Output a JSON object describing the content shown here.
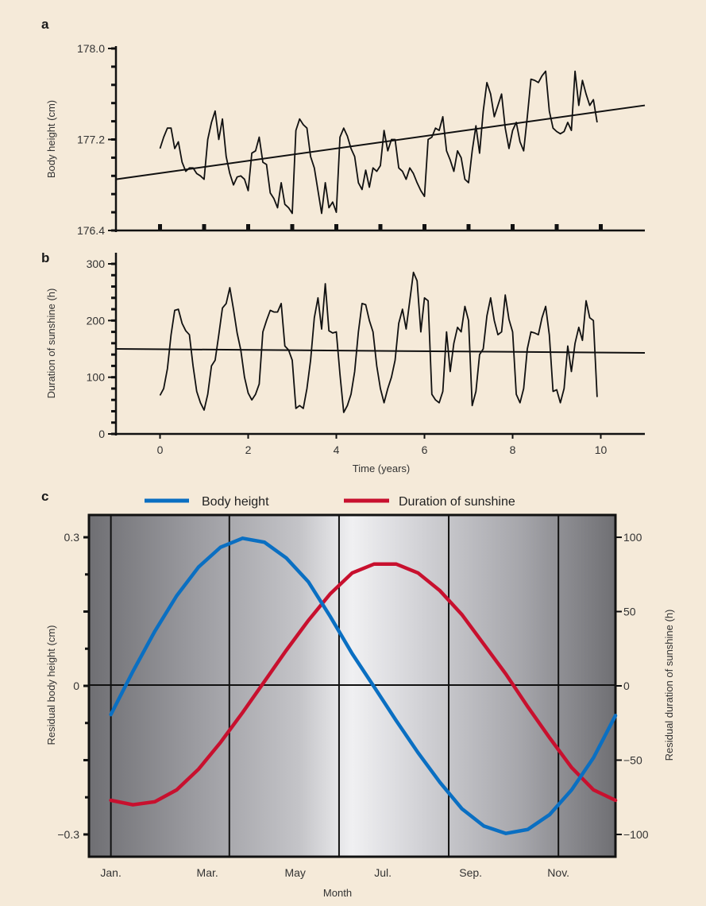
{
  "colors": {
    "background": "#f5ead9",
    "line": "#111111",
    "body_height": "#0a6fc2",
    "sunshine": "#c8102e"
  },
  "chart_data": [
    {
      "panel": "a",
      "type": "line",
      "ylabel": "Body height (cm)",
      "ylim": [
        176.4,
        178.0
      ],
      "xlim": [
        -1,
        11
      ],
      "y_tick_labels": [
        "178.0",
        "177.2",
        "176.4"
      ],
      "y_ticks": [
        178.0,
        177.2,
        176.4
      ],
      "x_ticks": [
        0,
        1,
        2,
        3,
        4,
        5,
        6,
        7,
        8,
        9,
        10
      ],
      "trend": {
        "x": [
          -1,
          11
        ],
        "y": [
          176.85,
          177.5
        ]
      },
      "series": [
        {
          "x": [
            0.0,
            0.083,
            0.167,
            0.25,
            0.333,
            0.417,
            0.5,
            0.583,
            0.667,
            0.75,
            0.833,
            0.917,
            1.0,
            1.083,
            1.167,
            1.25,
            1.333,
            1.417,
            1.5,
            1.583,
            1.667,
            1.75,
            1.833,
            1.917,
            2.0,
            2.083,
            2.167,
            2.25,
            2.333,
            2.417,
            2.5,
            2.583,
            2.667,
            2.75,
            2.833,
            2.917,
            3.0,
            3.083,
            3.167,
            3.25,
            3.333,
            3.417,
            3.5,
            3.583,
            3.667,
            3.75,
            3.833,
            3.917,
            4.0,
            4.083,
            4.167,
            4.25,
            4.333,
            4.417,
            4.5,
            4.583,
            4.667,
            4.75,
            4.833,
            4.917,
            5.0,
            5.083,
            5.167,
            5.25,
            5.333,
            5.417,
            5.5,
            5.583,
            5.667,
            5.75,
            5.833,
            5.917,
            6.0,
            6.083,
            6.167,
            6.25,
            6.333,
            6.417,
            6.5,
            6.583,
            6.667,
            6.75,
            6.833,
            6.917,
            7.0,
            7.083,
            7.167,
            7.25,
            7.333,
            7.417,
            7.5,
            7.583,
            7.667,
            7.75,
            7.833,
            7.917,
            8.0,
            8.083,
            8.167,
            8.25,
            8.333,
            8.417,
            8.5,
            8.583,
            8.667,
            8.75,
            8.833,
            8.917,
            9.0,
            9.083,
            9.167,
            9.25,
            9.333,
            9.417,
            9.5,
            9.583,
            9.667,
            9.75,
            9.833,
            9.917
          ],
          "y": [
            177.12,
            177.22,
            177.3,
            177.3,
            177.12,
            177.18,
            177.0,
            176.92,
            176.95,
            176.95,
            176.9,
            176.88,
            176.85,
            177.2,
            177.35,
            177.45,
            177.2,
            177.38,
            177.05,
            176.9,
            176.8,
            176.87,
            176.88,
            176.85,
            176.75,
            177.08,
            177.1,
            177.22,
            177.0,
            176.98,
            176.73,
            176.68,
            176.6,
            176.82,
            176.63,
            176.6,
            176.55,
            177.28,
            177.38,
            177.33,
            177.3,
            177.05,
            176.95,
            176.75,
            176.55,
            176.82,
            176.6,
            176.65,
            176.56,
            177.22,
            177.3,
            177.23,
            177.12,
            177.05,
            176.82,
            176.76,
            176.93,
            176.78,
            176.95,
            176.92,
            176.97,
            177.28,
            177.1,
            177.2,
            177.2,
            176.95,
            176.92,
            176.85,
            176.95,
            176.9,
            176.82,
            176.75,
            176.7,
            177.2,
            177.22,
            177.3,
            177.28,
            177.4,
            177.1,
            177.02,
            176.92,
            177.1,
            177.04,
            176.85,
            176.82,
            177.1,
            177.32,
            177.08,
            177.45,
            177.7,
            177.6,
            177.4,
            177.5,
            177.6,
            177.3,
            177.12,
            177.28,
            177.35,
            177.18,
            177.1,
            177.4,
            177.73,
            177.72,
            177.7,
            177.76,
            177.8,
            177.45,
            177.3,
            177.27,
            177.25,
            177.27,
            177.35,
            177.28,
            177.8,
            177.5,
            177.72,
            177.6,
            177.5,
            177.55,
            177.35
          ]
        }
      ]
    },
    {
      "panel": "b",
      "type": "line",
      "xlabel": "Time (years)",
      "ylabel": "Duration of sunshine (h)",
      "ylim": [
        0,
        300
      ],
      "xlim": [
        -1,
        11
      ],
      "y_tick_labels": [
        "300",
        "200",
        "100",
        "0"
      ],
      "y_ticks": [
        300,
        200,
        100,
        0
      ],
      "x_tick_labels": [
        "0",
        "2",
        "4",
        "6",
        "8",
        "10"
      ],
      "x_ticks": [
        0,
        2,
        4,
        6,
        8,
        10
      ],
      "trend": {
        "x": [
          -1,
          11
        ],
        "y": [
          150,
          143
        ]
      },
      "series": [
        {
          "x": [
            0.0,
            0.083,
            0.167,
            0.25,
            0.333,
            0.417,
            0.5,
            0.583,
            0.667,
            0.75,
            0.833,
            0.917,
            1.0,
            1.083,
            1.167,
            1.25,
            1.333,
            1.417,
            1.5,
            1.583,
            1.667,
            1.75,
            1.833,
            1.917,
            2.0,
            2.083,
            2.167,
            2.25,
            2.333,
            2.417,
            2.5,
            2.583,
            2.667,
            2.75,
            2.833,
            2.917,
            3.0,
            3.083,
            3.167,
            3.25,
            3.333,
            3.417,
            3.5,
            3.583,
            3.667,
            3.75,
            3.833,
            3.917,
            4.0,
            4.083,
            4.167,
            4.25,
            4.333,
            4.417,
            4.5,
            4.583,
            4.667,
            4.75,
            4.833,
            4.917,
            5.0,
            5.083,
            5.167,
            5.25,
            5.333,
            5.417,
            5.5,
            5.583,
            5.667,
            5.75,
            5.833,
            5.917,
            6.0,
            6.083,
            6.167,
            6.25,
            6.333,
            6.417,
            6.5,
            6.583,
            6.667,
            6.75,
            6.833,
            6.917,
            7.0,
            7.083,
            7.167,
            7.25,
            7.333,
            7.417,
            7.5,
            7.583,
            7.667,
            7.75,
            7.833,
            7.917,
            8.0,
            8.083,
            8.167,
            8.25,
            8.333,
            8.417,
            8.5,
            8.583,
            8.667,
            8.75,
            8.833,
            8.917,
            9.0,
            9.083,
            9.167,
            9.25,
            9.333,
            9.417,
            9.5,
            9.583,
            9.667,
            9.75,
            9.833,
            9.917
          ],
          "y": [
            68,
            80,
            115,
            175,
            218,
            220,
            195,
            182,
            175,
            120,
            75,
            55,
            42,
            70,
            120,
            130,
            175,
            222,
            230,
            258,
            220,
            178,
            148,
            100,
            72,
            60,
            70,
            88,
            180,
            200,
            218,
            215,
            215,
            230,
            155,
            148,
            130,
            45,
            50,
            45,
            80,
            130,
            205,
            240,
            185,
            265,
            182,
            178,
            180,
            105,
            38,
            50,
            70,
            110,
            180,
            230,
            228,
            200,
            180,
            120,
            80,
            55,
            80,
            100,
            130,
            195,
            220,
            185,
            235,
            285,
            270,
            180,
            240,
            235,
            70,
            60,
            55,
            75,
            180,
            110,
            160,
            188,
            180,
            225,
            200,
            50,
            75,
            140,
            150,
            208,
            240,
            200,
            175,
            180,
            245,
            202,
            180,
            70,
            55,
            80,
            150,
            180,
            178,
            175,
            205,
            225,
            175,
            75,
            78,
            55,
            80,
            155,
            110,
            160,
            188,
            165,
            235,
            205,
            200,
            65
          ]
        }
      ]
    },
    {
      "panel": "c",
      "type": "line",
      "xlabel": "Month",
      "ylabel": "Residual body height (cm)",
      "y2label": "Residual duration of sunshine (h)",
      "month_labels": [
        "Jan.",
        "Mar.",
        "May",
        "Jul.",
        "Sep.",
        "Nov."
      ],
      "ylim": [
        -0.345,
        0.345
      ],
      "y_tick_labels": [
        "0.3",
        "0",
        "−0.3"
      ],
      "y_ticks": [
        0.3,
        0,
        -0.3
      ],
      "y2lim": [
        -115,
        115
      ],
      "y2_tick_labels": [
        "100",
        "50",
        "0",
        "−50",
        "−100"
      ],
      "y2_ticks": [
        100,
        50,
        0,
        -50,
        -100
      ],
      "xlim": [
        0.5,
        12.5
      ],
      "series": [
        {
          "name": "Body height",
          "color": "#0a6fc2",
          "x": [
            1,
            1.5,
            2,
            2.5,
            3,
            3.5,
            4,
            4.5,
            5,
            5.5,
            6,
            6.5,
            7,
            7.5,
            8,
            8.5,
            9,
            9.5,
            10,
            10.5,
            11,
            11.5,
            12,
            12.5
          ],
          "y": [
            -0.058,
            0.029,
            0.11,
            0.182,
            0.24,
            0.28,
            0.298,
            0.29,
            0.258,
            0.21,
            0.14,
            0.065,
            -0.002,
            -0.07,
            -0.135,
            -0.195,
            -0.248,
            -0.283,
            -0.298,
            -0.29,
            -0.26,
            -0.21,
            -0.145,
            -0.06
          ]
        },
        {
          "name": "Duration of sunshine",
          "color": "#c8102e",
          "x": [
            1,
            1.5,
            2,
            2.5,
            3,
            3.5,
            4,
            4.5,
            5,
            5.5,
            6,
            6.5,
            7,
            7.5,
            8,
            8.5,
            9,
            9.5,
            10,
            10.5,
            11,
            11.5,
            12,
            12.5
          ],
          "y": [
            -77,
            -80,
            -78,
            -70,
            -56,
            -38,
            -18,
            3,
            24,
            44,
            62,
            76,
            82,
            82,
            76,
            64,
            48,
            28,
            8,
            -14,
            -35,
            -55,
            -70,
            -77
          ]
        }
      ]
    }
  ]
}
